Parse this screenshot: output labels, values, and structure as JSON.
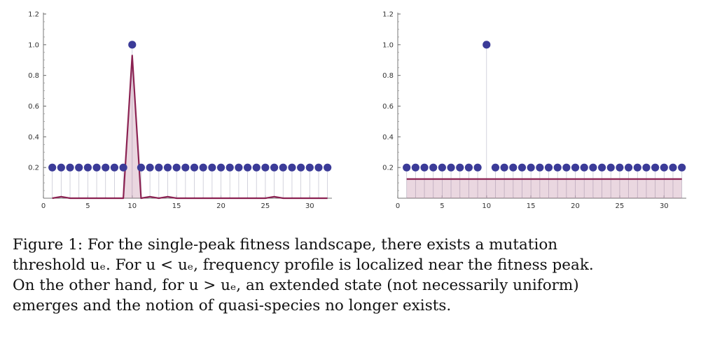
{
  "chart_data": [
    {
      "type": "line",
      "x_ticks": [
        "0",
        "5",
        "10",
        "15",
        "20",
        "25",
        "30"
      ],
      "y_ticks": [
        "1.2",
        "1.0",
        "0.8",
        "0.6",
        "0.4",
        "0.2"
      ],
      "xlim": [
        0,
        32.5
      ],
      "ylim": [
        0,
        1.2
      ],
      "series": [
        {
          "kind": "scatter",
          "color": "#3b3b98",
          "x": [
            1,
            2,
            3,
            4,
            5,
            6,
            7,
            8,
            9,
            10,
            11,
            12,
            13,
            14,
            15,
            16,
            17,
            18,
            19,
            20,
            21,
            22,
            23,
            24,
            25,
            26,
            27,
            28,
            29,
            30,
            31,
            32
          ],
          "y": [
            0.2,
            0.2,
            0.2,
            0.2,
            0.2,
            0.2,
            0.2,
            0.2,
            0.2,
            1.0,
            0.2,
            0.2,
            0.2,
            0.2,
            0.2,
            0.2,
            0.2,
            0.2,
            0.2,
            0.2,
            0.2,
            0.2,
            0.2,
            0.2,
            0.2,
            0.2,
            0.2,
            0.2,
            0.2,
            0.2,
            0.2,
            0.2
          ]
        },
        {
          "kind": "area-line",
          "color": "#8b2252",
          "x": [
            1,
            2,
            3,
            4,
            5,
            6,
            7,
            8,
            9,
            10,
            11,
            12,
            13,
            14,
            15,
            16,
            17,
            18,
            19,
            20,
            21,
            22,
            23,
            24,
            25,
            26,
            27,
            28,
            29,
            30,
            31,
            32
          ],
          "y": [
            0,
            0.01,
            0,
            0,
            0,
            0,
            0,
            0,
            0,
            0.93,
            0,
            0.01,
            0,
            0.01,
            0,
            0,
            0,
            0,
            0,
            0,
            0,
            0,
            0,
            0,
            0,
            0.01,
            0,
            0,
            0,
            0,
            0,
            0
          ]
        }
      ]
    },
    {
      "type": "line",
      "x_ticks": [
        "0",
        "5",
        "10",
        "15",
        "20",
        "25",
        "30"
      ],
      "y_ticks": [
        "1.2",
        "1.0",
        "0.8",
        "0.6",
        "0.4",
        "0.2"
      ],
      "xlim": [
        0,
        32.5
      ],
      "ylim": [
        0,
        1.2
      ],
      "series": [
        {
          "kind": "scatter",
          "color": "#3b3b98",
          "x": [
            1,
            2,
            3,
            4,
            5,
            6,
            7,
            8,
            9,
            10,
            11,
            12,
            13,
            14,
            15,
            16,
            17,
            18,
            19,
            20,
            21,
            22,
            23,
            24,
            25,
            26,
            27,
            28,
            29,
            30,
            31,
            32
          ],
          "y": [
            0.2,
            0.2,
            0.2,
            0.2,
            0.2,
            0.2,
            0.2,
            0.2,
            0.2,
            1.0,
            0.2,
            0.2,
            0.2,
            0.2,
            0.2,
            0.2,
            0.2,
            0.2,
            0.2,
            0.2,
            0.2,
            0.2,
            0.2,
            0.2,
            0.2,
            0.2,
            0.2,
            0.2,
            0.2,
            0.2,
            0.2,
            0.2
          ]
        },
        {
          "kind": "area-line",
          "color": "#8b2252",
          "x": [
            1,
            2,
            3,
            4,
            5,
            6,
            7,
            8,
            9,
            10,
            11,
            12,
            13,
            14,
            15,
            16,
            17,
            18,
            19,
            20,
            21,
            22,
            23,
            24,
            25,
            26,
            27,
            28,
            29,
            30,
            31,
            32
          ],
          "y": [
            0.125,
            0.125,
            0.125,
            0.125,
            0.125,
            0.125,
            0.125,
            0.125,
            0.125,
            0.125,
            0.125,
            0.125,
            0.125,
            0.125,
            0.125,
            0.125,
            0.125,
            0.125,
            0.125,
            0.125,
            0.125,
            0.125,
            0.125,
            0.125,
            0.125,
            0.125,
            0.125,
            0.125,
            0.125,
            0.125,
            0.125,
            0.125
          ]
        }
      ]
    }
  ],
  "caption": {
    "line1": "Figure 1:  For the single-peak fitness landscape, there exists a mutation",
    "line2": "threshold uₑ. For u < uₑ, frequency profile is localized near the fitness peak.",
    "line3": "On the other hand, for u > uₑ, an extended state (not necessarily uniform)",
    "line4": "emerges and the notion of quasi-species no longer exists."
  }
}
